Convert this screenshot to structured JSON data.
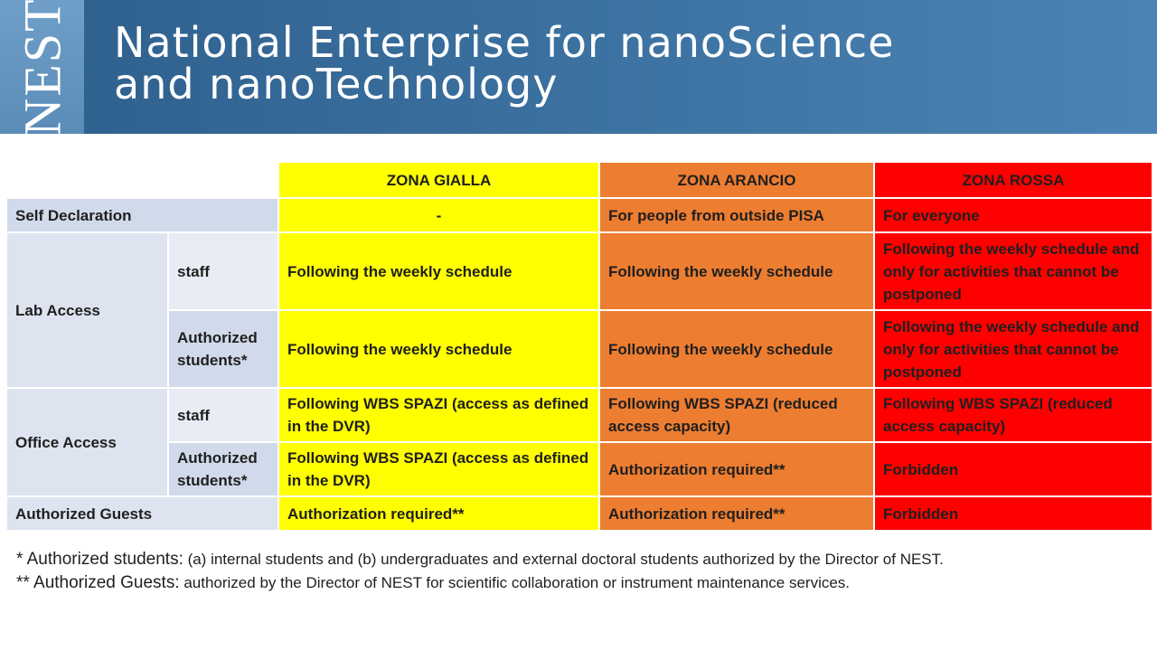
{
  "header": {
    "logo_text": "NEST",
    "title_line1": "National Enterprise for nanoScience",
    "title_line2": "and nanoTechnology"
  },
  "columns": {
    "gialla": "ZONA GIALLA",
    "arancio": "ZONA ARANCIO",
    "rossa": "ZONA ROSSA"
  },
  "rows": {
    "self_declaration": {
      "label": "Self Declaration",
      "gialla": "-",
      "arancio": "For people from outside PISA",
      "rossa": "For everyone"
    },
    "lab_access": {
      "label": "Lab Access",
      "staff": {
        "label": "staff",
        "gialla": "Following the weekly schedule",
        "arancio": "Following the weekly schedule",
        "rossa": "Following the weekly schedule and only for activities that cannot be postponed"
      },
      "students": {
        "label": "Authorized students*",
        "gialla": "Following the weekly schedule",
        "arancio": "Following the weekly schedule",
        "rossa": "Following the weekly schedule and only for activities that cannot be postponed"
      }
    },
    "office_access": {
      "label": "Office Access",
      "staff": {
        "label": "staff",
        "gialla": "Following WBS SPAZI (access as defined in the DVR)",
        "arancio": "Following WBS SPAZI (reduced access capacity)",
        "rossa": "Following WBS SPAZI (reduced access capacity)"
      },
      "students": {
        "label": "Authorized students*",
        "gialla": "Following WBS SPAZI (access as defined in the DVR)",
        "arancio": "Authorization  required**",
        "rossa": "Forbidden"
      }
    },
    "guests": {
      "label": "Authorized  Guests",
      "gialla": "Authorization  required**",
      "arancio": "Authorization  required**",
      "rossa": "Forbidden"
    }
  },
  "notes": [
    {
      "key": "* Authorized students:",
      "text": " (a) internal students and (b) undergraduates and external doctoral students authorized by the Director of NEST."
    },
    {
      "key": "** Authorized Guests:",
      "text": " authorized by the Director of NEST for scientific collaboration or instrument maintenance services."
    }
  ],
  "colors": {
    "banner": "#3a6f9e",
    "gialla": "#ffff00",
    "arancio": "#ed7d31",
    "rossa": "#ff0000",
    "label_bg": "#dde3ef"
  }
}
